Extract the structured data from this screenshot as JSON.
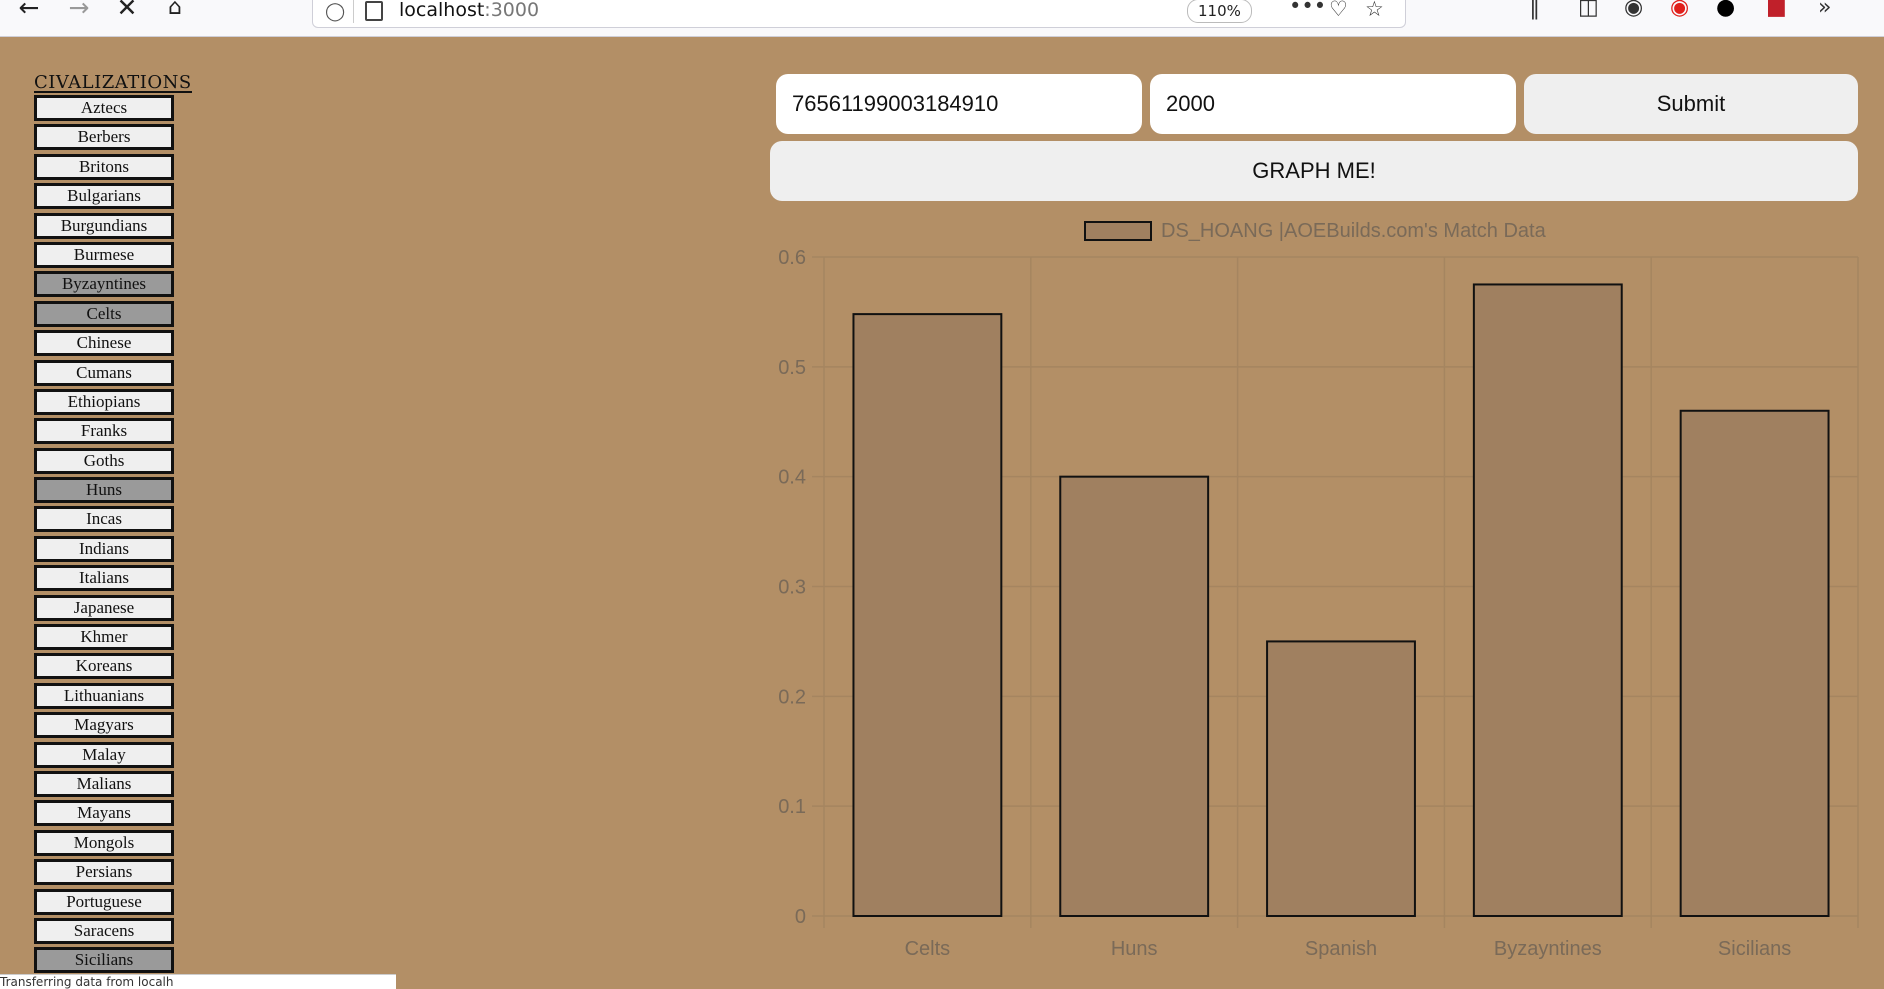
{
  "browser": {
    "url_host": "localhost",
    "url_port": ":3000",
    "zoom": "110%",
    "status_text": "Transferring data from localh"
  },
  "sidebar": {
    "title": "CIVALIZATIONS",
    "civs": [
      {
        "label": "Aztecs",
        "selected": false
      },
      {
        "label": "Berbers",
        "selected": false
      },
      {
        "label": "Britons",
        "selected": false
      },
      {
        "label": "Bulgarians",
        "selected": false
      },
      {
        "label": "Burgundians",
        "selected": false
      },
      {
        "label": "Burmese",
        "selected": false
      },
      {
        "label": "Byzayntines",
        "selected": true
      },
      {
        "label": "Celts",
        "selected": true
      },
      {
        "label": "Chinese",
        "selected": false
      },
      {
        "label": "Cumans",
        "selected": false
      },
      {
        "label": "Ethiopians",
        "selected": false
      },
      {
        "label": "Franks",
        "selected": false
      },
      {
        "label": "Goths",
        "selected": false
      },
      {
        "label": "Huns",
        "selected": true
      },
      {
        "label": "Incas",
        "selected": false
      },
      {
        "label": "Indians",
        "selected": false
      },
      {
        "label": "Italians",
        "selected": false
      },
      {
        "label": "Japanese",
        "selected": false
      },
      {
        "label": "Khmer",
        "selected": false
      },
      {
        "label": "Koreans",
        "selected": false
      },
      {
        "label": "Lithuanians",
        "selected": false
      },
      {
        "label": "Magyars",
        "selected": false
      },
      {
        "label": "Malay",
        "selected": false
      },
      {
        "label": "Malians",
        "selected": false
      },
      {
        "label": "Mayans",
        "selected": false
      },
      {
        "label": "Mongols",
        "selected": false
      },
      {
        "label": "Persians",
        "selected": false
      },
      {
        "label": "Portuguese",
        "selected": false
      },
      {
        "label": "Saracens",
        "selected": false
      },
      {
        "label": "Sicilians",
        "selected": true
      }
    ]
  },
  "form": {
    "steam_id_value": "76561199003184910",
    "count_value": "2000",
    "submit_label": "Submit",
    "graph_label": "GRAPH ME!"
  },
  "chart_data": {
    "type": "bar",
    "legend_label": "DS_HOANG |AOEBuilds.com's Match Data",
    "legend_position": "top",
    "categories": [
      "Celts",
      "Huns",
      "Spanish",
      "Byzayntines",
      "Sicilians"
    ],
    "values": [
      0.548,
      0.4,
      0.25,
      0.575,
      0.46
    ],
    "ylim": [
      0,
      0.6
    ],
    "yticks": [
      "0",
      "0.1",
      "0.2",
      "0.3",
      "0.4",
      "0.5",
      "0.6"
    ],
    "grid": true,
    "colors": {
      "bar_fill": "#a08060",
      "bar_stroke": "#111111",
      "grid": "#a58560",
      "text": "#7a6a58"
    }
  }
}
